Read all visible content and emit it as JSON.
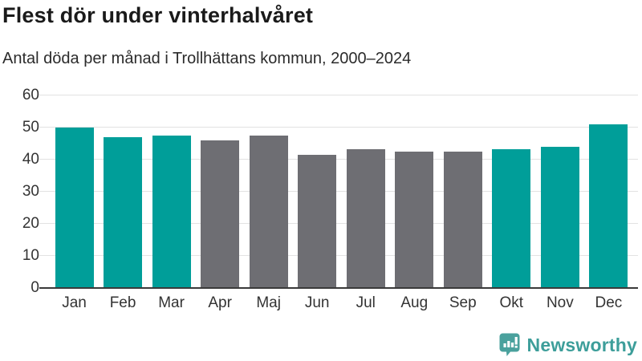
{
  "header": {
    "title": "Flest dör under vinterhalvåret",
    "subtitle": "Antal döda per månad i Trollhättans kommun, 2000–2024"
  },
  "chart_data": {
    "type": "bar",
    "title": "Flest dör under vinterhalvåret",
    "subtitle": "Antal döda per månad i Trollhättans kommun, 2000–2024",
    "categories": [
      "Jan",
      "Feb",
      "Mar",
      "Apr",
      "Maj",
      "Jun",
      "Jul",
      "Aug",
      "Sep",
      "Okt",
      "Nov",
      "Dec"
    ],
    "values": [
      50.0,
      46.9,
      47.5,
      46.1,
      47.5,
      41.5,
      43.3,
      42.6,
      42.6,
      43.3,
      44.0,
      50.9
    ],
    "groups": [
      "winter",
      "winter",
      "winter",
      "summer",
      "summer",
      "summer",
      "summer",
      "summer",
      "summer",
      "winter",
      "winter",
      "winter"
    ],
    "xlabel": "",
    "ylabel": "",
    "ylim": [
      0,
      60
    ],
    "yticks": [
      0,
      10,
      20,
      30,
      40,
      50,
      60
    ],
    "grid": true,
    "legend": "none",
    "colors": {
      "winter": "#009e99",
      "summer": "#6e6e73",
      "gridline": "#e2e2e2",
      "axis_line": "#3a3a3a",
      "tick_text": "#333333"
    }
  },
  "footer": {
    "logo_text": "Newsworthy",
    "logo_color": "#3d9e9a"
  }
}
